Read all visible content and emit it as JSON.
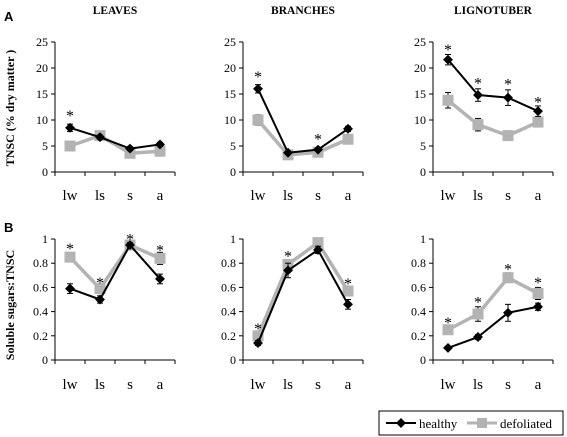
{
  "figure": {
    "row_labels": [
      "A",
      "B"
    ],
    "legend": [
      {
        "name": "healthy",
        "color": "#000000",
        "marker": "diamond"
      },
      {
        "name": "defoliated",
        "color": "#b3b3b3",
        "marker": "square"
      }
    ],
    "significance_marker": "*"
  },
  "chart_data": [
    {
      "type": "line",
      "panel": "A-leaves",
      "title": "LEAVES",
      "ylabel": "TNSC (% dry matter )",
      "categories": [
        "lw",
        "ls",
        "s",
        "a"
      ],
      "ylim": [
        0,
        25
      ],
      "yticks": [
        0,
        5,
        10,
        15,
        20,
        25
      ],
      "series": [
        {
          "name": "healthy",
          "values": [
            8.5,
            6.7,
            4.5,
            5.3
          ],
          "errors": [
            0.7,
            0.4,
            0.4,
            0.4
          ]
        },
        {
          "name": "defoliated",
          "values": [
            5.0,
            7.0,
            3.6,
            4.0
          ],
          "errors": [
            0.4,
            0.4,
            0.4,
            0.4
          ]
        }
      ],
      "stars": [
        {
          "index": 0,
          "y": 11.5
        }
      ]
    },
    {
      "type": "line",
      "panel": "A-branches",
      "title": "BRANCHES",
      "ylabel": "",
      "categories": [
        "lw",
        "ls",
        "s",
        "a"
      ],
      "ylim": [
        0,
        25
      ],
      "yticks": [
        0,
        5,
        10,
        15,
        20,
        25
      ],
      "series": [
        {
          "name": "healthy",
          "values": [
            16.0,
            3.7,
            4.3,
            8.3
          ],
          "errors": [
            0.8,
            0.3,
            0.3,
            0.5
          ]
        },
        {
          "name": "defoliated",
          "values": [
            10.0,
            3.3,
            3.8,
            6.3
          ],
          "errors": [
            1.0,
            0.3,
            0.3,
            0.4
          ]
        }
      ],
      "stars": [
        {
          "index": 0,
          "y": 19.0
        },
        {
          "index": 2,
          "y": 7.0
        }
      ]
    },
    {
      "type": "line",
      "panel": "A-lignotuber",
      "title": "LIGNOTUBER",
      "ylabel": "",
      "categories": [
        "lw",
        "ls",
        "s",
        "a"
      ],
      "ylim": [
        0,
        25
      ],
      "yticks": [
        0,
        5,
        10,
        15,
        20,
        25
      ],
      "series": [
        {
          "name": "healthy",
          "values": [
            21.6,
            14.8,
            14.3,
            11.7
          ],
          "errors": [
            1.0,
            1.2,
            1.5,
            1.0
          ]
        },
        {
          "name": "defoliated",
          "values": [
            13.8,
            9.1,
            7.0,
            9.6
          ],
          "errors": [
            1.5,
            1.2,
            0.5,
            0.6
          ]
        }
      ],
      "stars": [
        {
          "index": 0,
          "y": 24.2
        },
        {
          "index": 1,
          "y": 17.8
        },
        {
          "index": 2,
          "y": 17.6
        },
        {
          "index": 3,
          "y": 14.1
        }
      ]
    },
    {
      "type": "line",
      "panel": "B-leaves",
      "title": "",
      "ylabel": "Soluble sugars:TNSC",
      "categories": [
        "lw",
        "ls",
        "s",
        "a"
      ],
      "ylim": [
        0,
        1
      ],
      "yticks": [
        0,
        0.2,
        0.4,
        0.6,
        0.8,
        1
      ],
      "series": [
        {
          "name": "healthy",
          "values": [
            0.59,
            0.5,
            0.95,
            0.67
          ],
          "errors": [
            0.04,
            0.03,
            0.02,
            0.04
          ]
        },
        {
          "name": "defoliated",
          "values": [
            0.85,
            0.59,
            0.95,
            0.84
          ],
          "errors": [
            0.02,
            0.03,
            0.02,
            0.05
          ]
        }
      ],
      "stars": [
        {
          "index": 0,
          "y": 0.95
        },
        {
          "index": 1,
          "y": 0.67
        },
        {
          "index": 2,
          "y": 1.03
        },
        {
          "index": 3,
          "y": 0.94
        }
      ]
    },
    {
      "type": "line",
      "panel": "B-branches",
      "title": "",
      "ylabel": "",
      "categories": [
        "lw",
        "ls",
        "s",
        "a"
      ],
      "ylim": [
        0,
        1
      ],
      "yticks": [
        0,
        0.2,
        0.4,
        0.6,
        0.8,
        1
      ],
      "series": [
        {
          "name": "healthy",
          "values": [
            0.14,
            0.74,
            0.91,
            0.46
          ],
          "errors": [
            0.02,
            0.06,
            0.03,
            0.04
          ]
        },
        {
          "name": "defoliated",
          "values": [
            0.2,
            0.79,
            0.97,
            0.57
          ],
          "errors": [
            0.02,
            0.04,
            0.02,
            0.04
          ]
        }
      ],
      "stars": [
        {
          "index": 0,
          "y": 0.29
        },
        {
          "index": 1,
          "y": 0.89
        },
        {
          "index": 3,
          "y": 0.66
        }
      ]
    },
    {
      "type": "line",
      "panel": "B-lignotuber",
      "title": "",
      "ylabel": "",
      "categories": [
        "lw",
        "ls",
        "s",
        "a"
      ],
      "ylim": [
        0,
        1
      ],
      "yticks": [
        0,
        0.2,
        0.4,
        0.6,
        0.8,
        1
      ],
      "series": [
        {
          "name": "healthy",
          "values": [
            0.1,
            0.19,
            0.39,
            0.44
          ],
          "errors": [
            0.01,
            0.02,
            0.07,
            0.03
          ]
        },
        {
          "name": "defoliated",
          "values": [
            0.25,
            0.38,
            0.68,
            0.55
          ],
          "errors": [
            0.03,
            0.06,
            0.04,
            0.05
          ]
        }
      ],
      "stars": [
        {
          "index": 0,
          "y": 0.34
        },
        {
          "index": 1,
          "y": 0.51
        },
        {
          "index": 2,
          "y": 0.78
        },
        {
          "index": 3,
          "y": 0.67
        }
      ]
    }
  ]
}
